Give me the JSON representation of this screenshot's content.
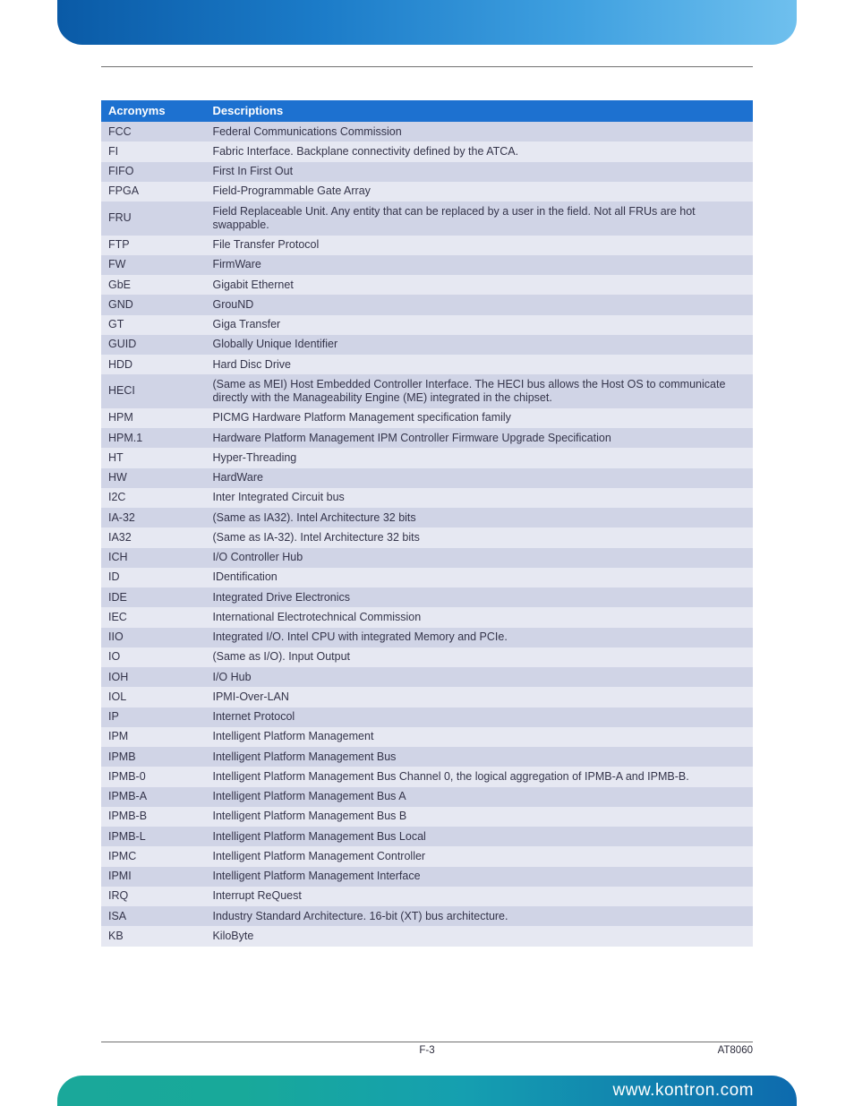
{
  "colors": {
    "header_bg": "#1d71d0",
    "row_alt_a": "#d0d4e6",
    "row_alt_b": "#e6e8f2",
    "header_text": "#ffffff",
    "body_text": "#34344a"
  },
  "table": {
    "col_widths_pct": [
      16,
      84
    ],
    "columns": [
      "Acronyms",
      "Descriptions"
    ],
    "rows": [
      [
        "FCC",
        "Federal Communications Commission"
      ],
      [
        "FI",
        "Fabric Interface. Backplane connectivity defined by the ATCA."
      ],
      [
        "FIFO",
        "First In First Out"
      ],
      [
        "FPGA",
        "Field-Programmable Gate Array"
      ],
      [
        "FRU",
        "Field Replaceable Unit. Any entity that can be replaced by a user in the field. Not all FRUs are hot swappable."
      ],
      [
        "FTP",
        "File Transfer Protocol"
      ],
      [
        "FW",
        "FirmWare"
      ],
      [
        "GbE",
        "Gigabit Ethernet"
      ],
      [
        "GND",
        "GrouND"
      ],
      [
        "GT",
        "Giga Transfer"
      ],
      [
        "GUID",
        "Globally Unique Identifier"
      ],
      [
        "HDD",
        "Hard Disc Drive"
      ],
      [
        "HECI",
        "(Same as MEI) Host Embedded Controller Interface. The HECI bus allows the Host OS to communicate directly with the Manageability Engine (ME) integrated in the chipset."
      ],
      [
        "HPM",
        "PICMG Hardware Platform Management specification family"
      ],
      [
        "HPM.1",
        "Hardware Platform Management IPM Controller Firmware Upgrade Specification"
      ],
      [
        "HT",
        "Hyper-Threading"
      ],
      [
        "HW",
        "HardWare"
      ],
      [
        "I2C",
        "Inter Integrated Circuit bus"
      ],
      [
        "IA-32",
        "(Same as IA32). Intel Architecture 32 bits"
      ],
      [
        "IA32",
        "(Same as IA-32). Intel Architecture 32 bits"
      ],
      [
        "ICH",
        "I/O Controller Hub"
      ],
      [
        "ID",
        "IDentification"
      ],
      [
        "IDE",
        "Integrated Drive Electronics"
      ],
      [
        "IEC",
        "International Electrotechnical Commission"
      ],
      [
        "IIO",
        "Integrated I/O. Intel CPU with integrated Memory and PCIe."
      ],
      [
        "IO",
        "(Same as I/O). Input Output"
      ],
      [
        "IOH",
        "I/O Hub"
      ],
      [
        "IOL",
        "IPMI-Over-LAN"
      ],
      [
        "IP",
        "Internet Protocol"
      ],
      [
        "IPM",
        "Intelligent Platform Management"
      ],
      [
        "IPMB",
        "Intelligent Platform Management Bus"
      ],
      [
        "IPMB-0",
        "Intelligent Platform Management Bus Channel 0, the logical aggregation of IPMB-A and IPMB-B."
      ],
      [
        "IPMB-A",
        "Intelligent Platform Management Bus A"
      ],
      [
        "IPMB-B",
        "Intelligent Platform Management Bus B"
      ],
      [
        "IPMB-L",
        "Intelligent Platform Management Bus Local"
      ],
      [
        "IPMC",
        "Intelligent Platform Management Controller"
      ],
      [
        "IPMI",
        "Intelligent Platform Management Interface"
      ],
      [
        "IRQ",
        "Interrupt ReQuest"
      ],
      [
        "ISA",
        "Industry Standard Architecture. 16-bit (XT) bus architecture."
      ],
      [
        "KB",
        "KiloByte"
      ]
    ]
  },
  "footer": {
    "page_number": "F-3",
    "doc_id": "AT8060",
    "url": "www.kontron.com"
  }
}
